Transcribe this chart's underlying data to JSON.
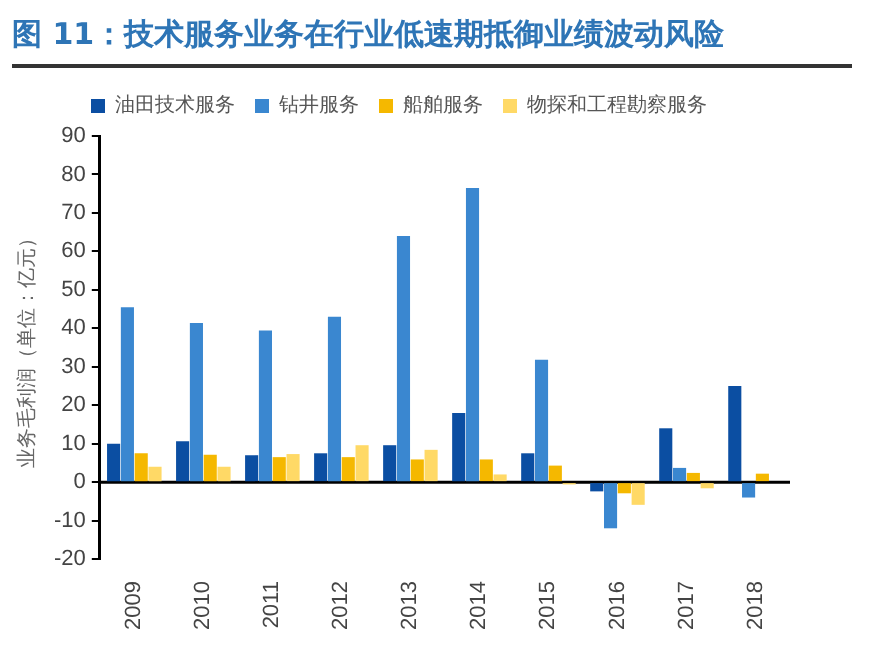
{
  "chart_data": {
    "type": "bar",
    "title": "图 11：技术服务业务在行业低速期抵御业绩波动风险",
    "ylabel": "业务毛利润（单位：亿元）",
    "categories": [
      "2009",
      "2010",
      "2011",
      "2012",
      "2013",
      "2014",
      "2015",
      "2016",
      "2017",
      "2018"
    ],
    "series": [
      {
        "name": "油田技术服务",
        "color": "#0b4ea2",
        "values": [
          10,
          10.6,
          7,
          7.5,
          9.6,
          18,
          7.5,
          -2.4,
          14,
          25
        ]
      },
      {
        "name": "钻井服务",
        "color": "#3a87d0",
        "values": [
          45.5,
          41.4,
          39.4,
          43,
          64,
          76.5,
          31.8,
          -12,
          3.7,
          -4
        ]
      },
      {
        "name": "船舶服务",
        "color": "#f5b800",
        "values": [
          7.5,
          7.1,
          6.5,
          6.5,
          5.9,
          5.9,
          4.3,
          -2.9,
          2.4,
          2.2
        ]
      },
      {
        "name": "物探和工程勘察服务",
        "color": "#ffd966",
        "values": [
          4,
          4,
          7.3,
          9.6,
          8.4,
          2,
          -0.6,
          -5.9,
          -1.6,
          0
        ]
      }
    ],
    "ylim": [
      -20,
      90
    ],
    "yticks": [
      -20,
      -10,
      0,
      10,
      20,
      30,
      40,
      50,
      60,
      70,
      80,
      90
    ],
    "legend": "top",
    "grid": false,
    "ref_lines": [
      {
        "axis": "y",
        "value": 0,
        "color": "#000000"
      }
    ]
  }
}
